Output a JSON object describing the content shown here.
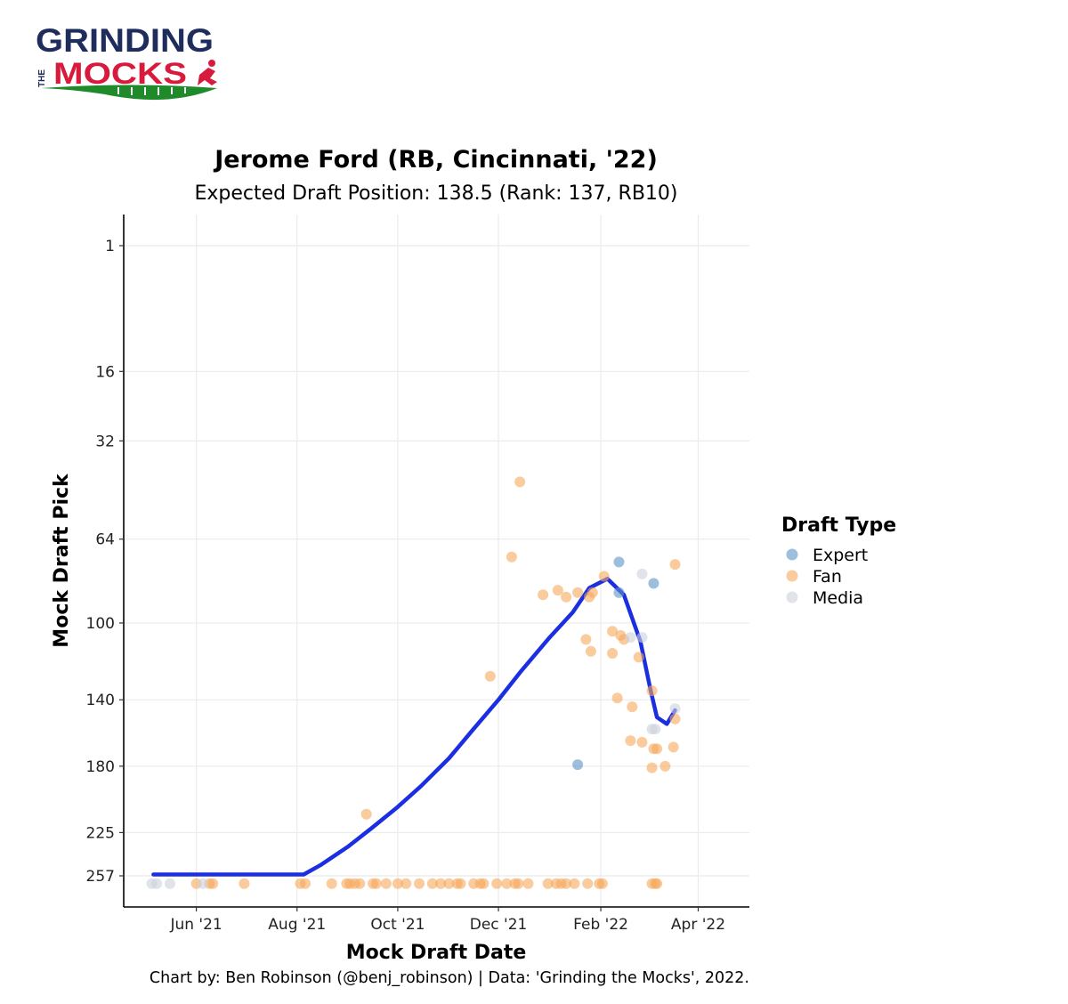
{
  "logo": {
    "line1": "GRINDING",
    "the": "THE",
    "line2": "MOCKS"
  },
  "chart_data": {
    "type": "scatter",
    "title": "Jerome Ford (RB, Cincinnati, '22)",
    "subtitle": "Expected Draft Position: 138.5 (Rank: 137, RB10)",
    "xlabel": "Mock Draft Date",
    "ylabel": "Mock Draft Pick",
    "caption": "Chart by: Ben Robinson (@benj_robinson) | Data: 'Grinding the Mocks', 2022.",
    "xlim": [
      "2021-04-18",
      "2022-05-02"
    ],
    "ylim": [
      257,
      1
    ],
    "y_scale": "sqrt",
    "x_ticks": [
      {
        "date": "2021-06-01",
        "label": "Jun '21"
      },
      {
        "date": "2021-08-01",
        "label": "Aug '21"
      },
      {
        "date": "2021-10-01",
        "label": "Oct '21"
      },
      {
        "date": "2021-12-01",
        "label": "Dec '21"
      },
      {
        "date": "2022-02-01",
        "label": "Feb '22"
      },
      {
        "date": "2022-04-01",
        "label": "Apr '22"
      }
    ],
    "y_ticks": [
      1,
      16,
      32,
      64,
      100,
      140,
      180,
      225,
      257
    ],
    "grid": true,
    "legend": {
      "title": "Draft Type",
      "position": "right"
    },
    "series": [
      {
        "name": "Expert",
        "color": "#5b93c4",
        "points": [
          {
            "x": "2022-01-18",
            "y": 179
          },
          {
            "x": "2022-02-12",
            "y": 73
          },
          {
            "x": "2022-02-12",
            "y": 86
          },
          {
            "x": "2022-03-05",
            "y": 82
          }
        ]
      },
      {
        "name": "Fan",
        "color": "#f5a85c",
        "points": [
          {
            "x": "2021-06-01",
            "y": 263
          },
          {
            "x": "2021-06-09",
            "y": 263
          },
          {
            "x": "2021-06-11",
            "y": 263
          },
          {
            "x": "2021-06-30",
            "y": 263
          },
          {
            "x": "2021-08-03",
            "y": 263
          },
          {
            "x": "2021-08-06",
            "y": 263
          },
          {
            "x": "2021-08-22",
            "y": 263
          },
          {
            "x": "2021-08-31",
            "y": 263
          },
          {
            "x": "2021-09-02",
            "y": 263
          },
          {
            "x": "2021-09-05",
            "y": 263
          },
          {
            "x": "2021-09-08",
            "y": 263
          },
          {
            "x": "2021-09-16",
            "y": 263
          },
          {
            "x": "2021-09-18",
            "y": 263
          },
          {
            "x": "2021-09-24",
            "y": 263
          },
          {
            "x": "2021-10-01",
            "y": 263
          },
          {
            "x": "2021-10-06",
            "y": 263
          },
          {
            "x": "2021-10-14",
            "y": 263
          },
          {
            "x": "2021-10-22",
            "y": 263
          },
          {
            "x": "2021-10-27",
            "y": 263
          },
          {
            "x": "2021-11-01",
            "y": 263
          },
          {
            "x": "2021-11-06",
            "y": 263
          },
          {
            "x": "2021-11-08",
            "y": 263
          },
          {
            "x": "2021-11-16",
            "y": 263
          },
          {
            "x": "2021-11-20",
            "y": 263
          },
          {
            "x": "2021-11-22",
            "y": 263
          },
          {
            "x": "2021-11-30",
            "y": 263
          },
          {
            "x": "2021-12-06",
            "y": 263
          },
          {
            "x": "2021-12-11",
            "y": 263
          },
          {
            "x": "2021-12-13",
            "y": 263
          },
          {
            "x": "2021-12-19",
            "y": 263
          },
          {
            "x": "2021-12-31",
            "y": 263
          },
          {
            "x": "2022-01-05",
            "y": 263
          },
          {
            "x": "2022-01-08",
            "y": 263
          },
          {
            "x": "2022-01-11",
            "y": 263
          },
          {
            "x": "2022-01-16",
            "y": 263
          },
          {
            "x": "2022-01-24",
            "y": 263
          },
          {
            "x": "2022-01-31",
            "y": 263
          },
          {
            "x": "2022-02-02",
            "y": 263
          },
          {
            "x": "2022-03-04",
            "y": 263
          },
          {
            "x": "2022-03-07",
            "y": 263
          },
          {
            "x": "2022-03-06",
            "y": 263
          },
          {
            "x": "2021-11-26",
            "y": 127
          },
          {
            "x": "2021-09-12",
            "y": 212
          },
          {
            "x": "2021-12-09",
            "y": 71
          },
          {
            "x": "2021-12-14",
            "y": 44
          },
          {
            "x": "2021-12-28",
            "y": 87
          },
          {
            "x": "2022-01-06",
            "y": 85
          },
          {
            "x": "2022-01-11",
            "y": 88
          },
          {
            "x": "2022-01-18",
            "y": 86
          },
          {
            "x": "2022-01-25",
            "y": 88
          },
          {
            "x": "2022-01-27",
            "y": 86
          },
          {
            "x": "2022-02-03",
            "y": 79
          },
          {
            "x": "2022-01-23",
            "y": 108
          },
          {
            "x": "2022-01-26",
            "y": 114
          },
          {
            "x": "2022-02-08",
            "y": 104
          },
          {
            "x": "2022-02-13",
            "y": 106
          },
          {
            "x": "2022-02-15",
            "y": 108
          },
          {
            "x": "2022-02-08",
            "y": 115
          },
          {
            "x": "2022-02-24",
            "y": 117
          },
          {
            "x": "2022-02-11",
            "y": 139
          },
          {
            "x": "2022-03-04",
            "y": 135
          },
          {
            "x": "2022-02-20",
            "y": 144
          },
          {
            "x": "2022-03-18",
            "y": 151
          },
          {
            "x": "2022-02-19",
            "y": 164
          },
          {
            "x": "2022-02-26",
            "y": 165
          },
          {
            "x": "2022-03-05",
            "y": 169
          },
          {
            "x": "2022-03-07",
            "y": 169
          },
          {
            "x": "2022-03-17",
            "y": 168
          },
          {
            "x": "2022-03-04",
            "y": 181
          },
          {
            "x": "2022-03-12",
            "y": 180
          },
          {
            "x": "2022-03-18",
            "y": 74
          }
        ]
      },
      {
        "name": "Media",
        "color": "#ccd1da",
        "points": [
          {
            "x": "2021-05-05",
            "y": 263
          },
          {
            "x": "2021-05-08",
            "y": 263
          },
          {
            "x": "2021-05-16",
            "y": 263
          },
          {
            "x": "2021-06-05",
            "y": 263
          },
          {
            "x": "2022-02-19",
            "y": 107
          },
          {
            "x": "2022-02-26",
            "y": 107
          },
          {
            "x": "2022-02-26",
            "y": 78
          },
          {
            "x": "2022-03-04",
            "y": 157
          },
          {
            "x": "2022-03-06",
            "y": 157
          },
          {
            "x": "2022-03-18",
            "y": 145
          }
        ]
      }
    ],
    "trend": {
      "color": "#1c2fe0",
      "points": [
        {
          "x": "2021-05-06",
          "y": 256
        },
        {
          "x": "2021-06-01",
          "y": 256
        },
        {
          "x": "2021-07-01",
          "y": 256
        },
        {
          "x": "2021-08-05",
          "y": 256
        },
        {
          "x": "2021-08-15",
          "y": 249
        },
        {
          "x": "2021-09-01",
          "y": 235
        },
        {
          "x": "2021-09-15",
          "y": 222
        },
        {
          "x": "2021-10-01",
          "y": 207
        },
        {
          "x": "2021-10-15",
          "y": 193
        },
        {
          "x": "2021-11-01",
          "y": 175
        },
        {
          "x": "2021-11-15",
          "y": 158
        },
        {
          "x": "2021-12-01",
          "y": 140
        },
        {
          "x": "2021-12-15",
          "y": 124
        },
        {
          "x": "2022-01-01",
          "y": 107
        },
        {
          "x": "2022-01-15",
          "y": 95
        },
        {
          "x": "2022-01-25",
          "y": 84
        },
        {
          "x": "2022-02-05",
          "y": 80
        },
        {
          "x": "2022-02-15",
          "y": 87
        },
        {
          "x": "2022-02-25",
          "y": 109
        },
        {
          "x": "2022-03-03",
          "y": 134
        },
        {
          "x": "2022-03-07",
          "y": 150
        },
        {
          "x": "2022-03-13",
          "y": 154
        },
        {
          "x": "2022-03-18",
          "y": 146
        }
      ]
    }
  }
}
